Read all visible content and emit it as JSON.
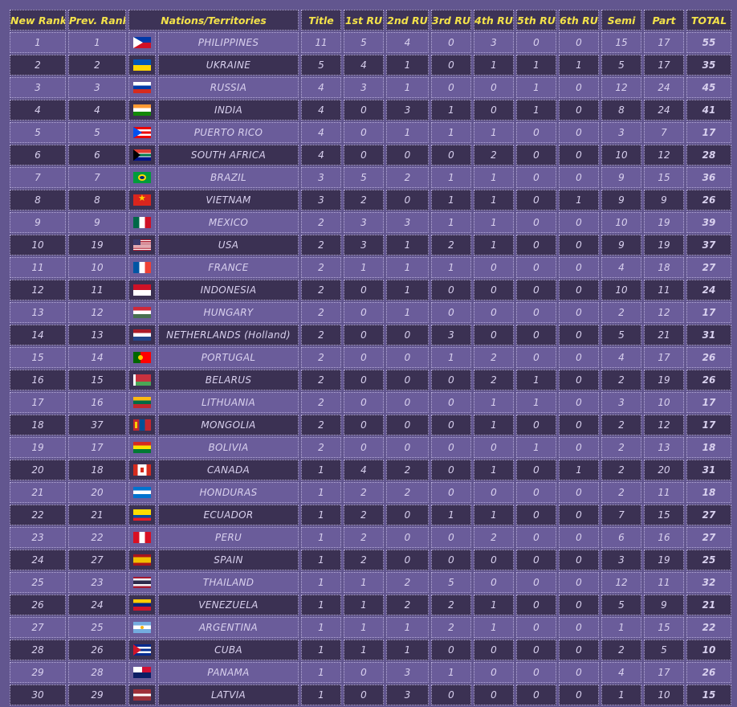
{
  "headers": {
    "new_rank": "New Rank",
    "prev_rank": "Prev. Rank",
    "nation": "Nations/Territories",
    "title": "Title",
    "ru1": "1st RU",
    "ru2": "2nd RU",
    "ru3": "3rd RU",
    "ru4": "4th RU",
    "ru5": "5th RU",
    "ru6": "6th RU",
    "semi": "Semi",
    "part": "Part",
    "total": "TOTAL"
  },
  "rows": [
    {
      "new": "1",
      "prev": "1",
      "flag": "ph",
      "flag_icon": "philippines-flag-icon",
      "nation": "PHILIPPINES",
      "title": "11",
      "ru1": "5",
      "ru2": "4",
      "ru3": "0",
      "ru4": "3",
      "ru5": "0",
      "ru6": "0",
      "semi": "15",
      "part": "17",
      "total": "55"
    },
    {
      "new": "2",
      "prev": "2",
      "flag": "ua",
      "flag_icon": "ukraine-flag-icon",
      "nation": "UKRAINE",
      "title": "5",
      "ru1": "4",
      "ru2": "1",
      "ru3": "0",
      "ru4": "1",
      "ru5": "1",
      "ru6": "1",
      "semi": "5",
      "part": "17",
      "total": "35"
    },
    {
      "new": "3",
      "prev": "3",
      "flag": "ru",
      "flag_icon": "russia-flag-icon",
      "nation": "RUSSIA",
      "title": "4",
      "ru1": "3",
      "ru2": "1",
      "ru3": "0",
      "ru4": "0",
      "ru5": "1",
      "ru6": "0",
      "semi": "12",
      "part": "24",
      "total": "45"
    },
    {
      "new": "4",
      "prev": "4",
      "flag": "in",
      "flag_icon": "india-flag-icon",
      "nation": "INDIA",
      "title": "4",
      "ru1": "0",
      "ru2": "3",
      "ru3": "1",
      "ru4": "0",
      "ru5": "1",
      "ru6": "0",
      "semi": "8",
      "part": "24",
      "total": "41"
    },
    {
      "new": "5",
      "prev": "5",
      "flag": "pr",
      "flag_icon": "puerto-rico-flag-icon",
      "nation": "PUERTO RICO",
      "title": "4",
      "ru1": "0",
      "ru2": "1",
      "ru3": "1",
      "ru4": "1",
      "ru5": "0",
      "ru6": "0",
      "semi": "3",
      "part": "7",
      "total": "17"
    },
    {
      "new": "6",
      "prev": "6",
      "flag": "za",
      "flag_icon": "south-africa-flag-icon",
      "nation": "SOUTH AFRICA",
      "title": "4",
      "ru1": "0",
      "ru2": "0",
      "ru3": "0",
      "ru4": "2",
      "ru5": "0",
      "ru6": "0",
      "semi": "10",
      "part": "12",
      "total": "28"
    },
    {
      "new": "7",
      "prev": "7",
      "flag": "br",
      "flag_icon": "brazil-flag-icon",
      "nation": "BRAZIL",
      "title": "3",
      "ru1": "5",
      "ru2": "2",
      "ru3": "1",
      "ru4": "1",
      "ru5": "0",
      "ru6": "0",
      "semi": "9",
      "part": "15",
      "total": "36"
    },
    {
      "new": "8",
      "prev": "8",
      "flag": "vn",
      "flag_icon": "vietnam-flag-icon",
      "nation": "VIETNAM",
      "title": "3",
      "ru1": "2",
      "ru2": "0",
      "ru3": "1",
      "ru4": "1",
      "ru5": "0",
      "ru6": "1",
      "semi": "9",
      "part": "9",
      "total": "26"
    },
    {
      "new": "9",
      "prev": "9",
      "flag": "mx",
      "flag_icon": "mexico-flag-icon",
      "nation": "MEXICO",
      "title": "2",
      "ru1": "3",
      "ru2": "3",
      "ru3": "1",
      "ru4": "1",
      "ru5": "0",
      "ru6": "0",
      "semi": "10",
      "part": "19",
      "total": "39"
    },
    {
      "new": "10",
      "prev": "19",
      "flag": "us",
      "flag_icon": "usa-flag-icon",
      "nation": "USA",
      "title": "2",
      "ru1": "3",
      "ru2": "1",
      "ru3": "2",
      "ru4": "1",
      "ru5": "0",
      "ru6": "0",
      "semi": "9",
      "part": "19",
      "total": "37"
    },
    {
      "new": "11",
      "prev": "10",
      "flag": "fr",
      "flag_icon": "france-flag-icon",
      "nation": "FRANCE",
      "title": "2",
      "ru1": "1",
      "ru2": "1",
      "ru3": "1",
      "ru4": "0",
      "ru5": "0",
      "ru6": "0",
      "semi": "4",
      "part": "18",
      "total": "27"
    },
    {
      "new": "12",
      "prev": "11",
      "flag": "id",
      "flag_icon": "indonesia-flag-icon",
      "nation": "INDONESIA",
      "title": "2",
      "ru1": "0",
      "ru2": "1",
      "ru3": "0",
      "ru4": "0",
      "ru5": "0",
      "ru6": "0",
      "semi": "10",
      "part": "11",
      "total": "24"
    },
    {
      "new": "13",
      "prev": "12",
      "flag": "hu",
      "flag_icon": "hungary-flag-icon",
      "nation": "HUNGARY",
      "title": "2",
      "ru1": "0",
      "ru2": "1",
      "ru3": "0",
      "ru4": "0",
      "ru5": "0",
      "ru6": "0",
      "semi": "2",
      "part": "12",
      "total": "17"
    },
    {
      "new": "14",
      "prev": "13",
      "flag": "nl",
      "flag_icon": "netherlands-flag-icon",
      "nation": "NETHERLANDS (Holland)",
      "title": "2",
      "ru1": "0",
      "ru2": "0",
      "ru3": "3",
      "ru4": "0",
      "ru5": "0",
      "ru6": "0",
      "semi": "5",
      "part": "21",
      "total": "31"
    },
    {
      "new": "15",
      "prev": "14",
      "flag": "pt",
      "flag_icon": "portugal-flag-icon",
      "nation": "PORTUGAL",
      "title": "2",
      "ru1": "0",
      "ru2": "0",
      "ru3": "1",
      "ru4": "2",
      "ru5": "0",
      "ru6": "0",
      "semi": "4",
      "part": "17",
      "total": "26"
    },
    {
      "new": "16",
      "prev": "15",
      "flag": "by",
      "flag_icon": "belarus-flag-icon",
      "nation": "BELARUS",
      "title": "2",
      "ru1": "0",
      "ru2": "0",
      "ru3": "0",
      "ru4": "2",
      "ru5": "1",
      "ru6": "0",
      "semi": "2",
      "part": "19",
      "total": "26"
    },
    {
      "new": "17",
      "prev": "16",
      "flag": "lt",
      "flag_icon": "lithuania-flag-icon",
      "nation": "LITHUANIA",
      "title": "2",
      "ru1": "0",
      "ru2": "0",
      "ru3": "0",
      "ru4": "1",
      "ru5": "1",
      "ru6": "0",
      "semi": "3",
      "part": "10",
      "total": "17"
    },
    {
      "new": "18",
      "prev": "37",
      "flag": "mn",
      "flag_icon": "mongolia-flag-icon",
      "nation": "MONGOLIA",
      "title": "2",
      "ru1": "0",
      "ru2": "0",
      "ru3": "0",
      "ru4": "1",
      "ru5": "0",
      "ru6": "0",
      "semi": "2",
      "part": "12",
      "total": "17"
    },
    {
      "new": "19",
      "prev": "17",
      "flag": "bo",
      "flag_icon": "bolivia-flag-icon",
      "nation": "BOLIVIA",
      "title": "2",
      "ru1": "0",
      "ru2": "0",
      "ru3": "0",
      "ru4": "0",
      "ru5": "1",
      "ru6": "0",
      "semi": "2",
      "part": "13",
      "total": "18"
    },
    {
      "new": "20",
      "prev": "18",
      "flag": "ca",
      "flag_icon": "canada-flag-icon",
      "nation": "CANADA",
      "title": "1",
      "ru1": "4",
      "ru2": "2",
      "ru3": "0",
      "ru4": "1",
      "ru5": "0",
      "ru6": "1",
      "semi": "2",
      "part": "20",
      "total": "31"
    },
    {
      "new": "21",
      "prev": "20",
      "flag": "hn",
      "flag_icon": "honduras-flag-icon",
      "nation": "HONDURAS",
      "title": "1",
      "ru1": "2",
      "ru2": "2",
      "ru3": "0",
      "ru4": "0",
      "ru5": "0",
      "ru6": "0",
      "semi": "2",
      "part": "11",
      "total": "18"
    },
    {
      "new": "22",
      "prev": "21",
      "flag": "ec",
      "flag_icon": "ecuador-flag-icon",
      "nation": "ECUADOR",
      "title": "1",
      "ru1": "2",
      "ru2": "0",
      "ru3": "1",
      "ru4": "1",
      "ru5": "0",
      "ru6": "0",
      "semi": "7",
      "part": "15",
      "total": "27"
    },
    {
      "new": "23",
      "prev": "22",
      "flag": "pe",
      "flag_icon": "peru-flag-icon",
      "nation": "PERU",
      "title": "1",
      "ru1": "2",
      "ru2": "0",
      "ru3": "0",
      "ru4": "2",
      "ru5": "0",
      "ru6": "0",
      "semi": "6",
      "part": "16",
      "total": "27"
    },
    {
      "new": "24",
      "prev": "27",
      "flag": "es",
      "flag_icon": "spain-flag-icon",
      "nation": "SPAIN",
      "title": "1",
      "ru1": "2",
      "ru2": "0",
      "ru3": "0",
      "ru4": "0",
      "ru5": "0",
      "ru6": "0",
      "semi": "3",
      "part": "19",
      "total": "25"
    },
    {
      "new": "25",
      "prev": "23",
      "flag": "th",
      "flag_icon": "thailand-flag-icon",
      "nation": "THAILAND",
      "title": "1",
      "ru1": "1",
      "ru2": "2",
      "ru3": "5",
      "ru4": "0",
      "ru5": "0",
      "ru6": "0",
      "semi": "12",
      "part": "11",
      "total": "32"
    },
    {
      "new": "26",
      "prev": "24",
      "flag": "ve",
      "flag_icon": "venezuela-flag-icon",
      "nation": "VENEZUELA",
      "title": "1",
      "ru1": "1",
      "ru2": "2",
      "ru3": "2",
      "ru4": "1",
      "ru5": "0",
      "ru6": "0",
      "semi": "5",
      "part": "9",
      "total": "21"
    },
    {
      "new": "27",
      "prev": "25",
      "flag": "ar",
      "flag_icon": "argentina-flag-icon",
      "nation": "ARGENTINA",
      "title": "1",
      "ru1": "1",
      "ru2": "1",
      "ru3": "2",
      "ru4": "1",
      "ru5": "0",
      "ru6": "0",
      "semi": "1",
      "part": "15",
      "total": "22"
    },
    {
      "new": "28",
      "prev": "26",
      "flag": "cu",
      "flag_icon": "cuba-flag-icon",
      "nation": "CUBA",
      "title": "1",
      "ru1": "1",
      "ru2": "1",
      "ru3": "0",
      "ru4": "0",
      "ru5": "0",
      "ru6": "0",
      "semi": "2",
      "part": "5",
      "total": "10"
    },
    {
      "new": "29",
      "prev": "28",
      "flag": "pa",
      "flag_icon": "panama-flag-icon",
      "nation": "PANAMA",
      "title": "1",
      "ru1": "0",
      "ru2": "3",
      "ru3": "1",
      "ru4": "0",
      "ru5": "0",
      "ru6": "0",
      "semi": "4",
      "part": "17",
      "total": "26"
    },
    {
      "new": "30",
      "prev": "29",
      "flag": "lv",
      "flag_icon": "latvia-flag-icon",
      "nation": "LATVIA",
      "title": "1",
      "ru1": "0",
      "ru2": "3",
      "ru3": "0",
      "ru4": "0",
      "ru5": "0",
      "ru6": "0",
      "semi": "1",
      "part": "10",
      "total": "15"
    }
  ],
  "colors": {
    "background": "#62568f",
    "row_light": "#6a5c9a",
    "row_dark": "#3b3153",
    "header_text": "#f3e24a",
    "cell_text": "#d8d0ee"
  }
}
